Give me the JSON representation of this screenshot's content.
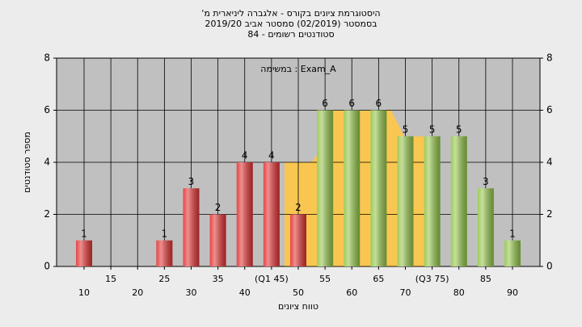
{
  "chart_data": {
    "type": "bar",
    "title_lines": [
      "'היסטוגרמת ציונים בקורס - אלגברה ליניארית מ",
      "בסמסטר  (02/2019)  סמסטר אביב 2019/20",
      "סטודנטים רשומים - 84"
    ],
    "annotation": "במשימה : Exam_A",
    "ylabel": "מספר סטודנטים",
    "xlabel": "טווח ציונים",
    "categories": [
      "10",
      "15",
      "20",
      "25",
      "30",
      "35",
      "40",
      "(Q1 45)",
      "50",
      "55",
      "60",
      "65",
      "70",
      "(Q3 75)",
      "80",
      "85",
      "90"
    ],
    "values": [
      1,
      0,
      0,
      1,
      3,
      2,
      4,
      4,
      2,
      6,
      6,
      6,
      5,
      5,
      5,
      3,
      1
    ],
    "colors": [
      "#e23232",
      "#e23232",
      "#e23232",
      "#e23232",
      "#e23232",
      "#e23232",
      "#e23232",
      "#e23232",
      "#e23232",
      "#94c54a",
      "#94c54a",
      "#94c54a",
      "#94c54a",
      "#94c54a",
      "#94c54a",
      "#94c54a",
      "#94c54a"
    ],
    "ylim": [
      0,
      8
    ],
    "yticks": [
      0,
      2,
      4,
      6,
      8
    ],
    "grid": true
  }
}
